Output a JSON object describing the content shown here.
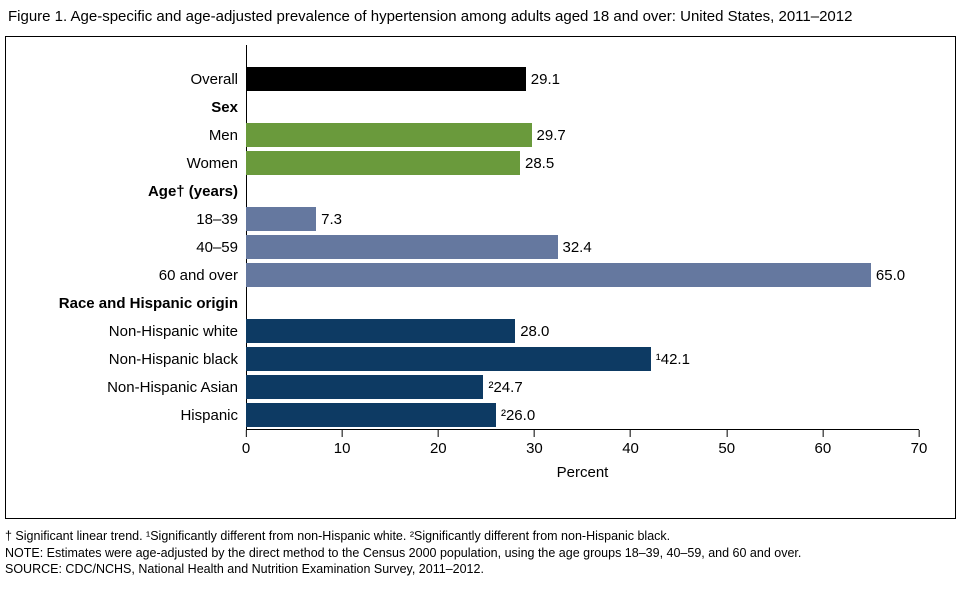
{
  "title": "Figure 1. Age-specific and age-adjusted prevalence of hypertension among adults aged 18 and over: United States, 2011–2012",
  "chart_data": {
    "type": "bar",
    "orientation": "horizontal",
    "title": "Age-specific and age-adjusted prevalence of hypertension among adults aged 18 and over: United States, 2011–2012",
    "xlabel": "Percent",
    "xlim": [
      0,
      70
    ],
    "xticks": [
      0,
      10,
      20,
      30,
      40,
      50,
      60,
      70
    ],
    "grid": false,
    "colors": {
      "overall": "#000000",
      "sex": "#6a9a3c",
      "age": "#65789f",
      "race": "#0d3a63"
    },
    "rows": [
      {
        "type": "bar",
        "label": "Overall",
        "value": 29.1,
        "display": "29.1",
        "group": "overall"
      },
      {
        "type": "header",
        "label": "Sex"
      },
      {
        "type": "bar",
        "label": "Men",
        "value": 29.7,
        "display": "29.7",
        "group": "sex"
      },
      {
        "type": "bar",
        "label": "Women",
        "value": 28.5,
        "display": "28.5",
        "group": "sex"
      },
      {
        "type": "header",
        "label": "Age† (years)"
      },
      {
        "type": "bar",
        "label": "18–39",
        "value": 7.3,
        "display": "7.3",
        "group": "age"
      },
      {
        "type": "bar",
        "label": "40–59",
        "value": 32.4,
        "display": "32.4",
        "group": "age"
      },
      {
        "type": "bar",
        "label": "60 and over",
        "value": 65.0,
        "display": "65.0",
        "group": "age"
      },
      {
        "type": "header",
        "label": "Race and Hispanic origin"
      },
      {
        "type": "bar",
        "label": "Non-Hispanic white",
        "value": 28.0,
        "display": "28.0",
        "group": "race"
      },
      {
        "type": "bar",
        "label": "Non-Hispanic black",
        "value": 42.1,
        "display": "¹42.1",
        "group": "race"
      },
      {
        "type": "bar",
        "label": "Non-Hispanic Asian",
        "value": 24.7,
        "display": "²24.7",
        "group": "race"
      },
      {
        "type": "bar",
        "label": "Hispanic",
        "value": 26.0,
        "display": "²26.0",
        "group": "race"
      }
    ]
  },
  "footnotes": [
    "† Significant linear trend. ¹Significantly different from non-Hispanic white. ²Significantly different from non-Hispanic black.",
    "NOTE: Estimates were age-adjusted by the direct method to the Census 2000 population, using the age groups 18–39, 40–59, and 60 and over.",
    "SOURCE: CDC/NCHS, National Health and Nutrition Examination Survey, 2011–2012."
  ]
}
